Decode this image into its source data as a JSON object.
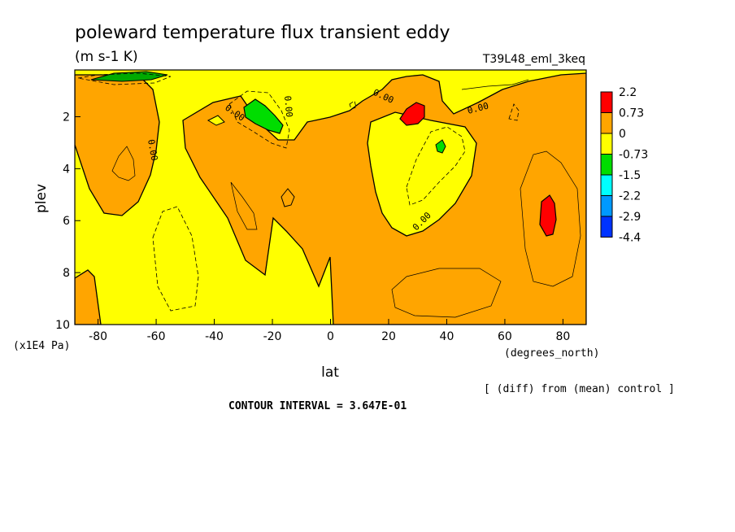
{
  "chart_data": {
    "type": "heatmap",
    "title": "poleward temperature flux transient eddy",
    "subtitle": "(m s-1 K)",
    "experiment": "T39L48_eml_3keq",
    "xlabel": "lat",
    "xunits": "(degrees_north)",
    "ylabel": "plev",
    "yunits": "(x1E4 Pa)",
    "x_ticks": [
      -80,
      -60,
      -40,
      -20,
      0,
      20,
      40,
      60,
      80
    ],
    "y_ticks": [
      2,
      4,
      6,
      8,
      10
    ],
    "xlim": [
      -88,
      88
    ],
    "ylim": [
      10,
      0.2
    ],
    "y_inverted": true,
    "contour_interval_text": "CONTOUR INTERVAL = 3.647E-01",
    "diff_note": "[ (diff) from (mean) control ]",
    "contour_labels": [
      "0.00",
      "0.00",
      "0.00",
      "0.00",
      "0.00",
      "0.00"
    ],
    "colorbar": {
      "labels": [
        "2.2",
        "0.73",
        "0",
        "-0.73",
        "-1.5",
        "-2.2",
        "-2.9",
        "-4.4"
      ],
      "colors": [
        "#ff0000",
        "#ffa500",
        "#ffff00",
        "#00dd00",
        "#00ffff",
        "#0099ff",
        "#0033ff"
      ]
    },
    "regions": [
      {
        "label": "SH high-lat positive region",
        "level": "0 to 0.73",
        "color": "#ffa500",
        "lat_range": [
          -88,
          -60
        ],
        "plev_range": [
          1.0,
          5.7
        ]
      },
      {
        "label": "midlat positive tongue",
        "level": "0 to 0.73",
        "color": "#ffa500",
        "lat_range": [
          -55,
          -2
        ],
        "plev_range": [
          1.5,
          8.5
        ]
      },
      {
        "label": "SH negative maximum",
        "level": "-1.5 to -0.73",
        "color": "#00dd00",
        "lat": -23,
        "plev": 1.8
      },
      {
        "label": "NH upper positive maximum",
        "level": "0.73 to 2.2",
        "color": "#ff0000",
        "lat": 29,
        "plev": 1.9
      },
      {
        "label": "NH negative maximum",
        "level": "-1.5 to -0.73",
        "color": "#00dd00",
        "lat": 37,
        "plev": 3.0
      },
      {
        "label": "NH high-lat positive maximum",
        "level": "0.73 to 2.2",
        "color": "#ff0000",
        "lat": 75,
        "plev": 5.7
      },
      {
        "label": "NH lower positive region",
        "level": "0 to 0.73",
        "color": "#ffa500",
        "lat_range": [
          2,
          88
        ],
        "plev_range": [
          3.0,
          10.0
        ]
      }
    ]
  }
}
